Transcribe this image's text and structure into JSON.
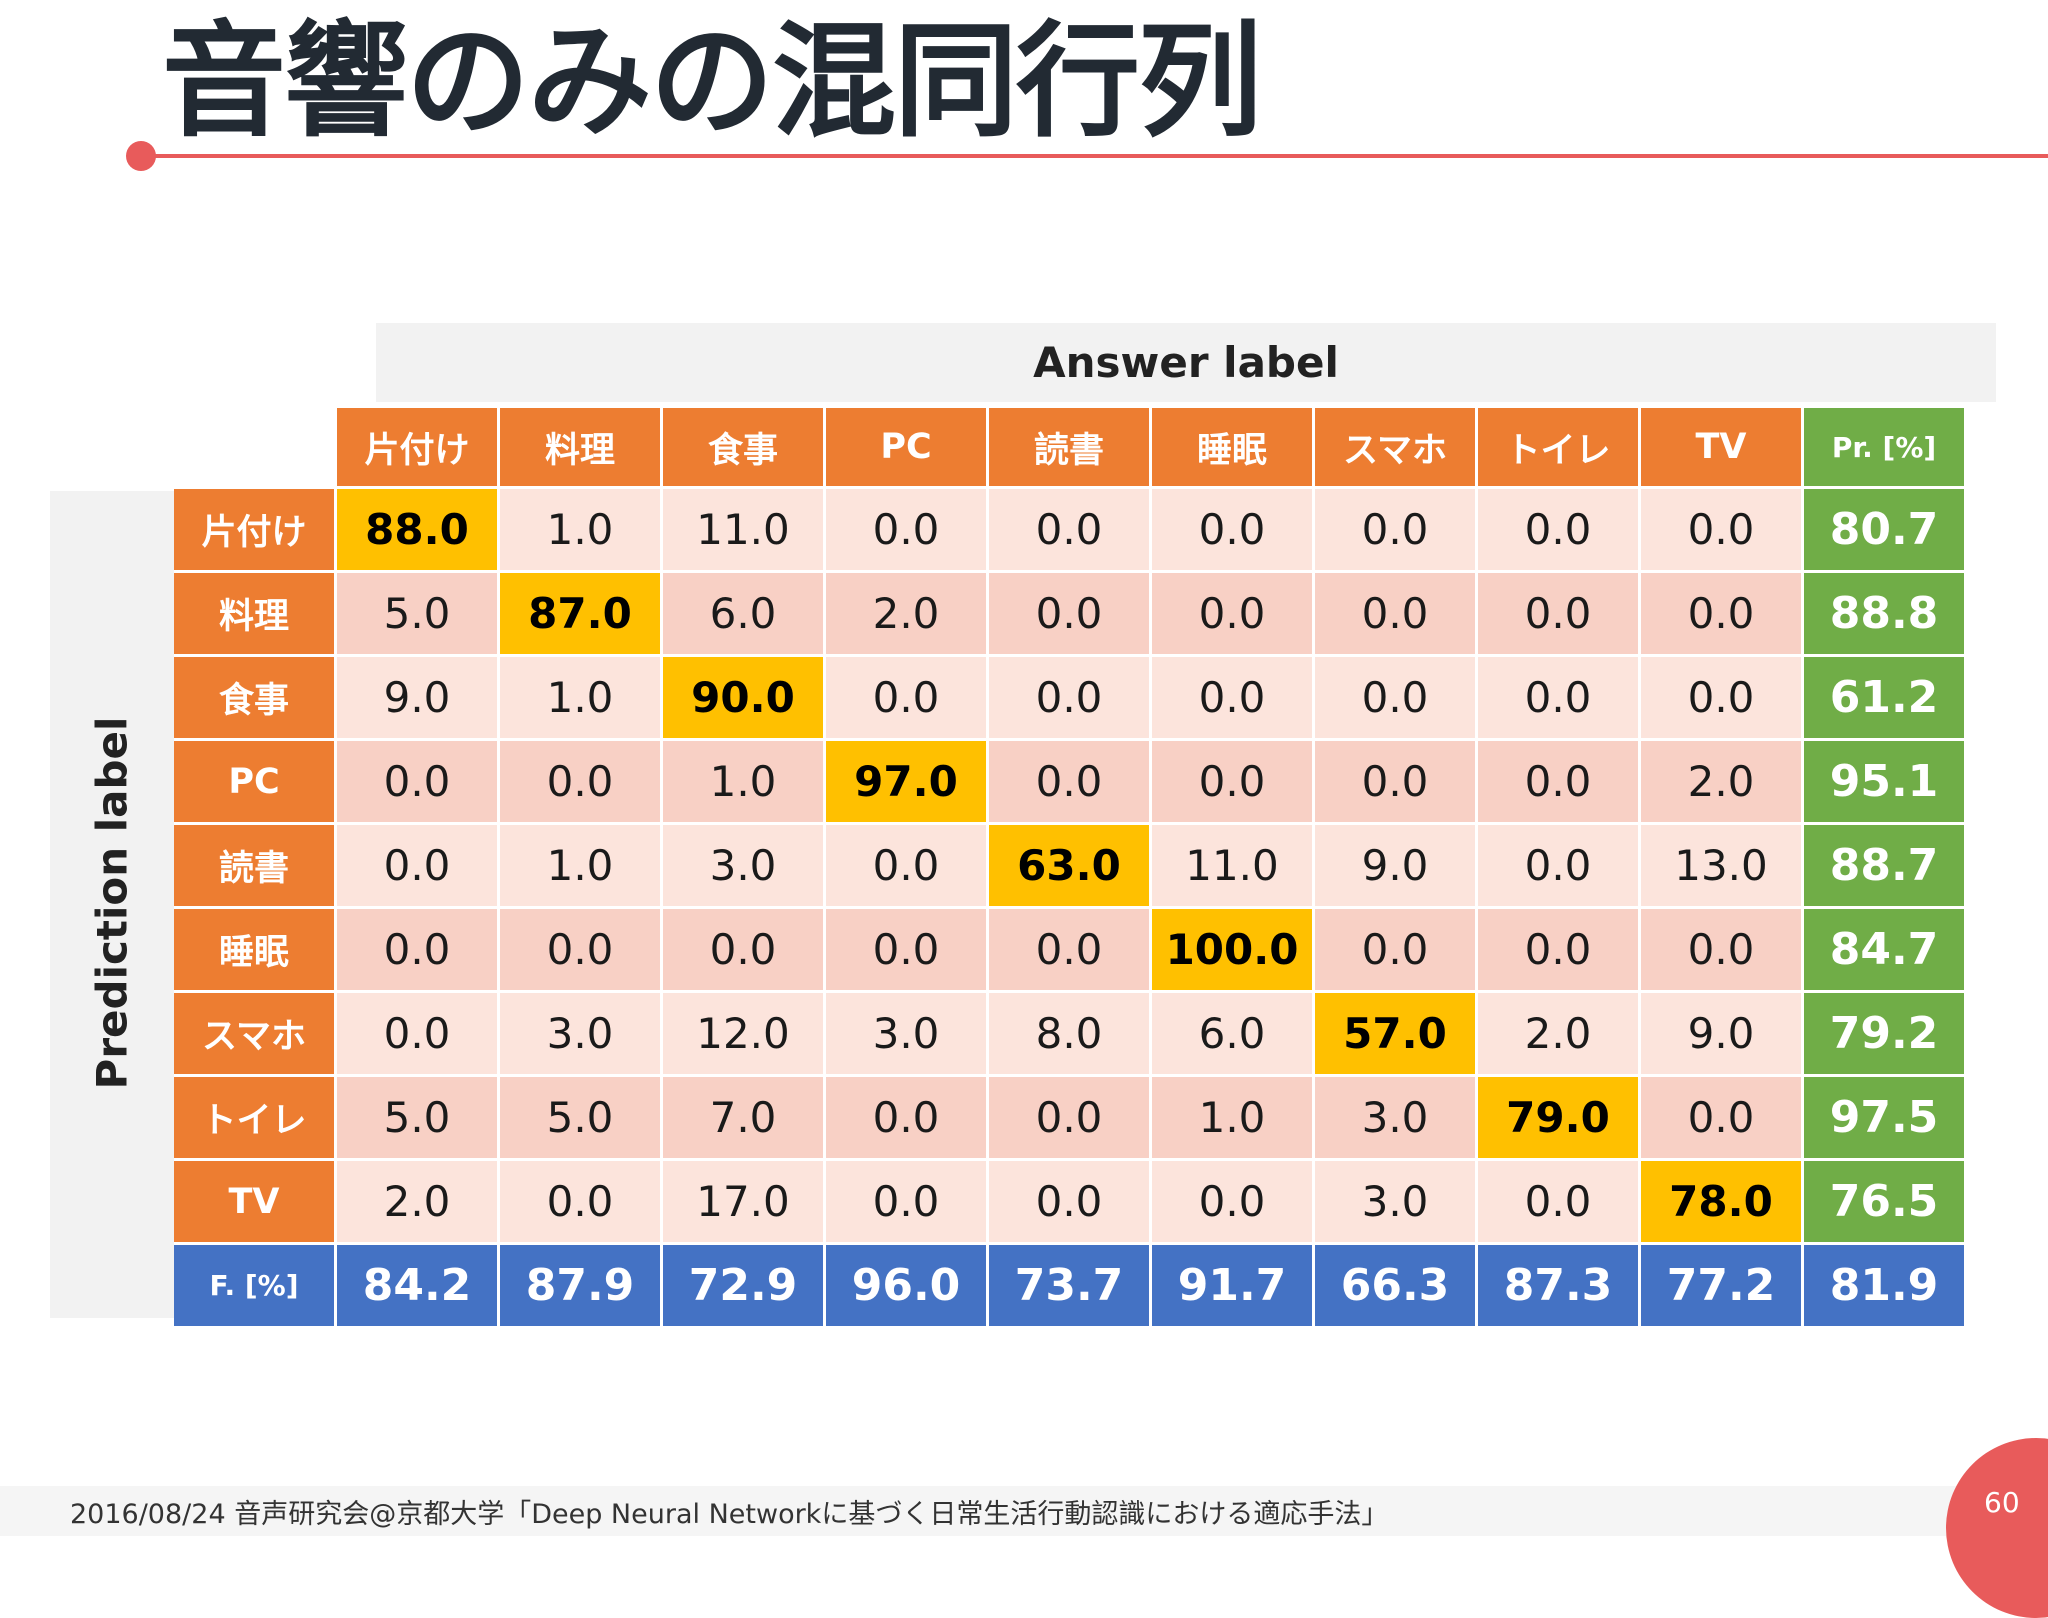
{
  "slide": {
    "title": "音響のみの混同行列",
    "footer": "2016/08/24  音声研究会@京都大学「Deep Neural Networkに基づく日常生活行動認識における適応手法」",
    "page_number": "60"
  },
  "matrix": {
    "answer_axis_label": "Answer label",
    "prediction_axis_label": "Prediction label",
    "classes": [
      "片付け",
      "料理",
      "食事",
      "PC",
      "読書",
      "睡眠",
      "スマホ",
      "トイレ",
      "TV"
    ],
    "precision_header": "Pr. [%]",
    "fmeasure_header": "F. [%]",
    "rows": [
      {
        "label": "片付け",
        "values": [
          "88.0",
          "1.0",
          "11.0",
          "0.0",
          "0.0",
          "0.0",
          "0.0",
          "0.0",
          "0.0"
        ],
        "precision": "80.7"
      },
      {
        "label": "料理",
        "values": [
          "5.0",
          "87.0",
          "6.0",
          "2.0",
          "0.0",
          "0.0",
          "0.0",
          "0.0",
          "0.0"
        ],
        "precision": "88.8"
      },
      {
        "label": "食事",
        "values": [
          "9.0",
          "1.0",
          "90.0",
          "0.0",
          "0.0",
          "0.0",
          "0.0",
          "0.0",
          "0.0"
        ],
        "precision": "61.2"
      },
      {
        "label": "PC",
        "values": [
          "0.0",
          "0.0",
          "1.0",
          "97.0",
          "0.0",
          "0.0",
          "0.0",
          "0.0",
          "2.0"
        ],
        "precision": "95.1"
      },
      {
        "label": "読書",
        "values": [
          "0.0",
          "1.0",
          "3.0",
          "0.0",
          "63.0",
          "11.0",
          "9.0",
          "0.0",
          "13.0"
        ],
        "precision": "88.7"
      },
      {
        "label": "睡眠",
        "values": [
          "0.0",
          "0.0",
          "0.0",
          "0.0",
          "0.0",
          "100.0",
          "0.0",
          "0.0",
          "0.0"
        ],
        "precision": "84.7"
      },
      {
        "label": "スマホ",
        "values": [
          "0.0",
          "3.0",
          "12.0",
          "3.0",
          "8.0",
          "6.0",
          "57.0",
          "2.0",
          "9.0"
        ],
        "precision": "79.2"
      },
      {
        "label": "トイレ",
        "values": [
          "5.0",
          "5.0",
          "7.0",
          "0.0",
          "0.0",
          "1.0",
          "3.0",
          "79.0",
          "0.0"
        ],
        "precision": "97.5"
      },
      {
        "label": "TV",
        "values": [
          "2.0",
          "0.0",
          "17.0",
          "0.0",
          "0.0",
          "0.0",
          "3.0",
          "0.0",
          "78.0"
        ],
        "precision": "76.5"
      }
    ],
    "fmeasure": [
      "84.2",
      "87.9",
      "72.9",
      "96.0",
      "73.7",
      "91.7",
      "66.3",
      "87.3",
      "77.2"
    ],
    "fmeasure_overall": "81.9"
  },
  "colors": {
    "accent": "#e85b5b",
    "header_orange": "#ed7d31",
    "diagonal_gold": "#ffc000",
    "precision_green": "#70ad47",
    "fmeasure_blue": "#4472c4"
  }
}
